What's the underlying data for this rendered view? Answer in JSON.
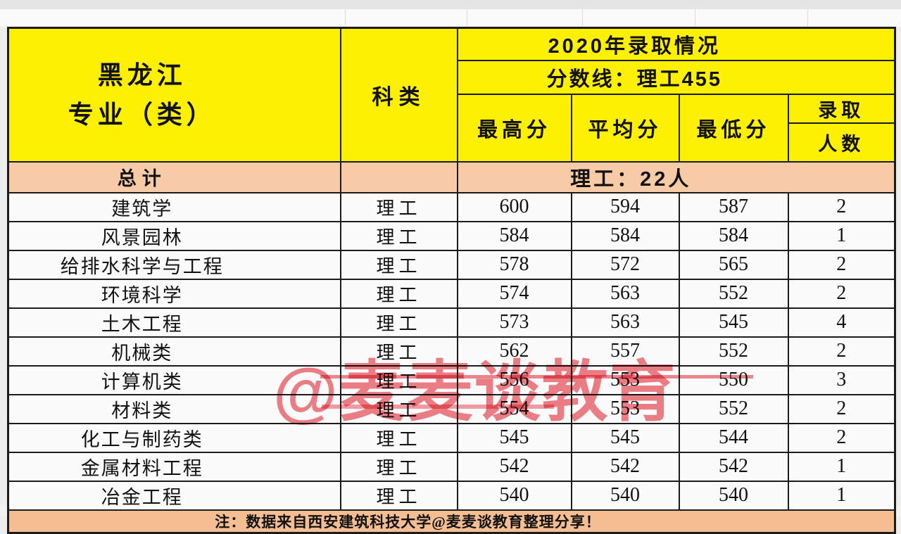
{
  "watermark": {
    "text": "@麦麦谈教育",
    "color": "#E74C58"
  },
  "colors": {
    "header_yellow": "#FDF002",
    "summary_peach": "#F7CBA5",
    "footer_peach": "#F5BE92",
    "border": "#1B1B1B"
  },
  "table": {
    "province_line1": "黑龙江",
    "province_line2": "专业（类）",
    "subject_type_header": "科类",
    "year_header": "2020年录取情况",
    "score_line_header": "分数线：理工455",
    "columns": {
      "max": "最高分",
      "avg": "平均分",
      "min": "最低分",
      "admit": "录取",
      "count": "人数"
    },
    "total": {
      "label": "总计",
      "value": "理工：22人"
    },
    "rows": [
      {
        "major": "建筑学",
        "category": "理工",
        "max": "600",
        "avg": "594",
        "min": "587",
        "count": "2"
      },
      {
        "major": "风景园林",
        "category": "理工",
        "max": "584",
        "avg": "584",
        "min": "584",
        "count": "1"
      },
      {
        "major": "给排水科学与工程",
        "category": "理工",
        "max": "578",
        "avg": "572",
        "min": "565",
        "count": "2"
      },
      {
        "major": "环境科学",
        "category": "理工",
        "max": "574",
        "avg": "563",
        "min": "552",
        "count": "2"
      },
      {
        "major": "土木工程",
        "category": "理工",
        "max": "573",
        "avg": "563",
        "min": "545",
        "count": "4"
      },
      {
        "major": "机械类",
        "category": "理工",
        "max": "562",
        "avg": "557",
        "min": "552",
        "count": "2"
      },
      {
        "major": "计算机类",
        "category": "理工",
        "max": "556",
        "avg": "553",
        "min": "550",
        "count": "3"
      },
      {
        "major": "材料类",
        "category": "理工",
        "max": "554",
        "avg": "553",
        "min": "552",
        "count": "2"
      },
      {
        "major": "化工与制药类",
        "category": "理工",
        "max": "545",
        "avg": "545",
        "min": "544",
        "count": "2"
      },
      {
        "major": "金属材料工程",
        "category": "理工",
        "max": "542",
        "avg": "542",
        "min": "542",
        "count": "1"
      },
      {
        "major": "冶金工程",
        "category": "理工",
        "max": "540",
        "avg": "540",
        "min": "540",
        "count": "1"
      }
    ],
    "footnote": "注：数据来自西安建筑科技大学@麦麦谈教育整理分享！"
  },
  "gridlines": {
    "top_x": [
      490,
      663,
      827,
      987,
      1147
    ],
    "bottom_x": [
      328,
      660,
      992
    ]
  }
}
